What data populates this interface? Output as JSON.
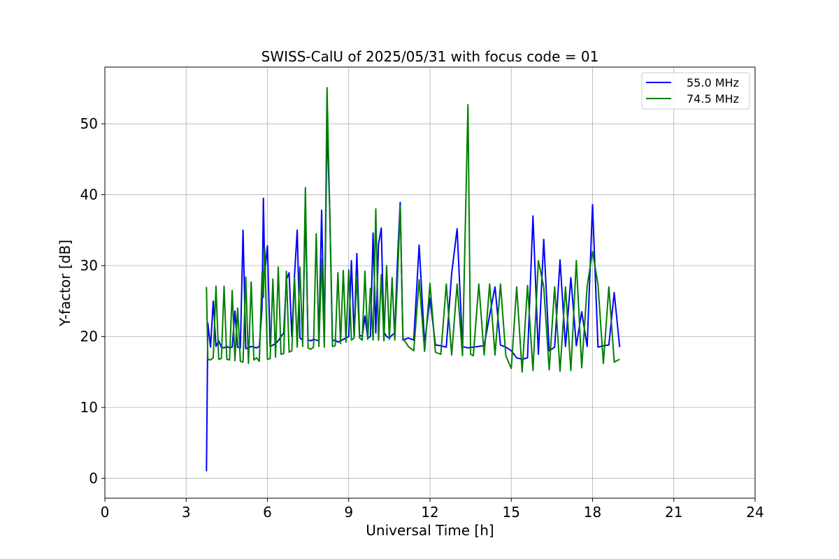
{
  "chart_data": {
    "type": "line",
    "title": "SWISS-CalU of 2025/05/31 with focus code = 01",
    "xlabel": "Universal Time [h]",
    "ylabel": "Y-factor [dB]",
    "xlim": [
      0,
      24
    ],
    "ylim": [
      -2.8,
      58
    ],
    "xticks": [
      0,
      3,
      6,
      9,
      12,
      15,
      18,
      21,
      24
    ],
    "yticks": [
      0,
      10,
      20,
      30,
      40,
      50
    ],
    "grid": true,
    "legend_position": "top-right",
    "series": [
      {
        "name": "55.0 MHz",
        "color": "#0000ff",
        "x": [
          3.75,
          3.8,
          3.9,
          4.0,
          4.1,
          4.2,
          4.3,
          4.4,
          4.5,
          4.6,
          4.7,
          4.8,
          4.9,
          5.0,
          5.1,
          5.2,
          5.3,
          5.4,
          5.5,
          5.6,
          5.7,
          5.8,
          5.85,
          5.9,
          6.0,
          6.1,
          6.2,
          6.3,
          6.4,
          6.5,
          6.6,
          6.7,
          6.8,
          6.9,
          7.0,
          7.1,
          7.2,
          7.3,
          7.4,
          7.5,
          7.6,
          7.7,
          7.8,
          7.9,
          8.0,
          8.1,
          8.2,
          8.3,
          8.4,
          8.5,
          8.6,
          8.7,
          8.8,
          8.9,
          9.0,
          9.1,
          9.2,
          9.3,
          9.4,
          9.5,
          9.6,
          9.7,
          9.8,
          9.9,
          10.0,
          10.1,
          10.2,
          10.3,
          10.4,
          10.5,
          10.6,
          10.7,
          10.8,
          10.9,
          11.0,
          11.2,
          11.4,
          11.6,
          11.8,
          12.0,
          12.2,
          12.4,
          12.6,
          12.8,
          13.0,
          13.2,
          13.4,
          13.6,
          13.8,
          14.0,
          14.2,
          14.4,
          14.6,
          14.8,
          15.0,
          15.2,
          15.4,
          15.6,
          15.8,
          16.0,
          16.2,
          16.4,
          16.6,
          16.8,
          17.0,
          17.2,
          17.4,
          17.6,
          17.8,
          18.0,
          18.2,
          18.4,
          18.6,
          18.8,
          19.0
        ],
        "y": [
          1.0,
          21.9,
          18.5,
          25.0,
          18.6,
          19.4,
          18.5,
          18.4,
          18.6,
          18.4,
          18.5,
          23.6,
          18.5,
          18.4,
          35.0,
          18.3,
          18.4,
          18.6,
          18.5,
          18.4,
          18.6,
          24.0,
          39.5,
          28.9,
          32.8,
          18.6,
          18.8,
          19.0,
          19.4,
          20.0,
          20.5,
          28.0,
          29.0,
          20.0,
          28.7,
          35.0,
          19.8,
          19.5,
          37.9,
          19.5,
          19.4,
          19.6,
          19.5,
          19.4,
          37.8,
          19.4,
          50.0,
          38.0,
          19.4,
          19.5,
          19.2,
          19.4,
          19.6,
          19.8,
          20.0,
          30.7,
          20.0,
          31.7,
          20.2,
          20.0,
          22.9,
          19.8,
          20.0,
          34.6,
          20.5,
          33.0,
          35.3,
          20.6,
          20.0,
          19.8,
          20.2,
          20.5,
          30.7,
          38.9,
          19.5,
          19.8,
          19.5,
          32.9,
          19.0,
          25.4,
          18.8,
          18.7,
          18.5,
          28.9,
          35.2,
          18.6,
          18.4,
          18.5,
          18.6,
          18.7,
          23.0,
          27.0,
          18.8,
          18.5,
          18.0,
          17.0,
          16.8,
          17.0,
          37.0,
          17.5,
          33.7,
          18.0,
          18.5,
          30.8,
          18.6,
          28.3,
          18.7,
          23.5,
          18.6,
          38.6,
          18.5,
          18.7,
          18.8,
          26.2,
          18.5
        ]
      },
      {
        "name": "74.5 MHz",
        "color": "#008000",
        "x": [
          3.75,
          3.8,
          3.9,
          4.0,
          4.1,
          4.2,
          4.3,
          4.4,
          4.5,
          4.6,
          4.7,
          4.8,
          4.9,
          5.0,
          5.1,
          5.2,
          5.3,
          5.4,
          5.5,
          5.6,
          5.7,
          5.8,
          5.85,
          5.9,
          6.0,
          6.1,
          6.2,
          6.3,
          6.4,
          6.5,
          6.6,
          6.7,
          6.8,
          6.9,
          7.0,
          7.1,
          7.2,
          7.3,
          7.4,
          7.5,
          7.6,
          7.7,
          7.8,
          7.9,
          8.0,
          8.1,
          8.2,
          8.3,
          8.4,
          8.5,
          8.6,
          8.7,
          8.8,
          8.9,
          9.0,
          9.1,
          9.2,
          9.3,
          9.4,
          9.5,
          9.6,
          9.7,
          9.8,
          9.9,
          10.0,
          10.1,
          10.2,
          10.3,
          10.4,
          10.5,
          10.6,
          10.7,
          10.8,
          10.9,
          11.0,
          11.2,
          11.4,
          11.6,
          11.8,
          12.0,
          12.2,
          12.4,
          12.6,
          12.8,
          13.0,
          13.2,
          13.4,
          13.5,
          13.6,
          13.8,
          14.0,
          14.2,
          14.4,
          14.6,
          14.8,
          15.0,
          15.2,
          15.4,
          15.6,
          15.8,
          16.0,
          16.2,
          16.4,
          16.6,
          16.8,
          17.0,
          17.2,
          17.4,
          17.6,
          17.8,
          18.0,
          18.2,
          18.4,
          18.6,
          18.8,
          19.0
        ],
        "y": [
          27.0,
          16.8,
          16.7,
          17.0,
          27.1,
          16.8,
          16.9,
          27.1,
          16.8,
          16.7,
          26.5,
          16.6,
          24.0,
          16.5,
          16.4,
          28.4,
          16.2,
          27.7,
          16.7,
          17.0,
          16.5,
          29.0,
          25.5,
          32.5,
          16.8,
          16.9,
          28.1,
          17.1,
          29.8,
          17.5,
          17.6,
          29.2,
          17.8,
          18.0,
          28.3,
          18.5,
          29.8,
          18.6,
          41.0,
          18.4,
          18.2,
          18.5,
          34.5,
          18.6,
          30.9,
          18.5,
          55.1,
          37.8,
          18.6,
          18.7,
          29.0,
          19.0,
          29.3,
          19.2,
          29.4,
          19.5,
          19.8,
          28.6,
          19.8,
          19.5,
          29.2,
          19.6,
          26.8,
          19.5,
          38.0,
          19.5,
          28.7,
          19.4,
          30.0,
          19.6,
          28.3,
          19.5,
          28.0,
          38.4,
          19.8,
          18.6,
          18.0,
          28.0,
          17.9,
          27.5,
          17.8,
          17.5,
          27.4,
          17.4,
          27.4,
          17.3,
          52.7,
          17.5,
          17.3,
          27.4,
          17.4,
          27.4,
          17.4,
          27.4,
          17.3,
          15.5,
          27.0,
          15.0,
          27.2,
          15.2,
          30.7,
          27.0,
          15.3,
          27.0,
          15.1,
          27.0,
          15.2,
          30.7,
          15.6,
          27.1,
          32.0,
          27.3,
          16.2,
          27.0,
          16.4,
          16.8
        ]
      }
    ]
  }
}
